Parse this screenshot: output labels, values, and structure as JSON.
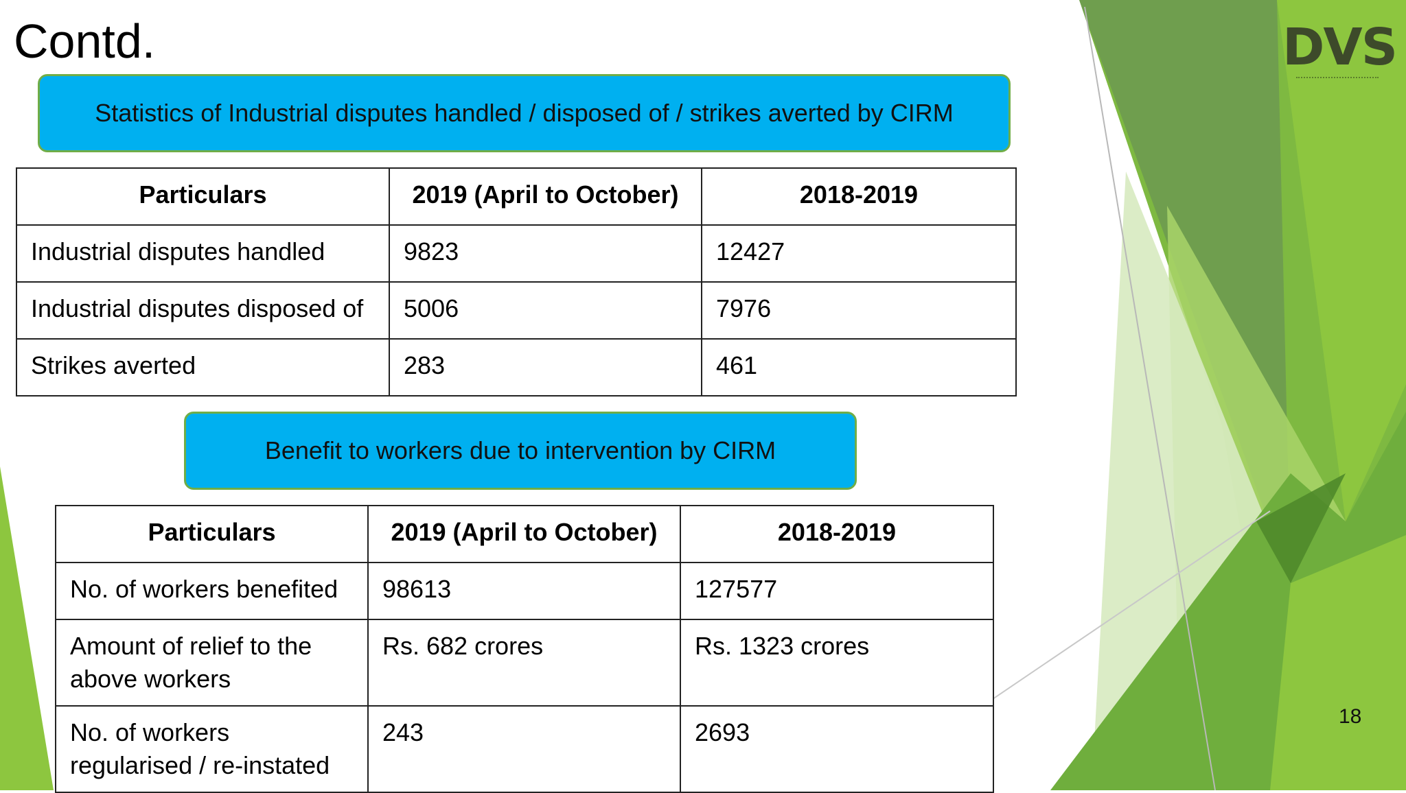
{
  "slide": {
    "title": "Contd.",
    "page_number": "18",
    "logo_text": "DVS"
  },
  "banner1": {
    "text": "Statistics of Industrial disputes handled / disposed of / strikes averted by CIRM"
  },
  "table1": {
    "headers": [
      "Particulars",
      "2019 (April to October)",
      "2018-2019"
    ],
    "rows": [
      [
        "Industrial disputes handled",
        "9823",
        "12427"
      ],
      [
        "Industrial disputes disposed of",
        "5006",
        "7976"
      ],
      [
        "Strikes averted",
        "283",
        "461"
      ]
    ]
  },
  "banner2": {
    "text": "Benefit to workers due to intervention by CIRM"
  },
  "table2": {
    "headers": [
      "Particulars",
      "2019 (April to October)",
      "2018-2019"
    ],
    "rows": [
      [
        "No. of workers benefited",
        "98613",
        "127577"
      ],
      [
        "Amount of relief to the above workers",
        "Rs. 682 crores",
        "Rs. 1323 crores"
      ],
      [
        "No. of workers regularised / re-instated",
        "243",
        "2693"
      ]
    ]
  },
  "colors": {
    "banner_fill": "#00b0f0",
    "banner_border": "#70ad47",
    "accent_green": "#8dc63f",
    "dark_green": "#5a8f3c"
  }
}
